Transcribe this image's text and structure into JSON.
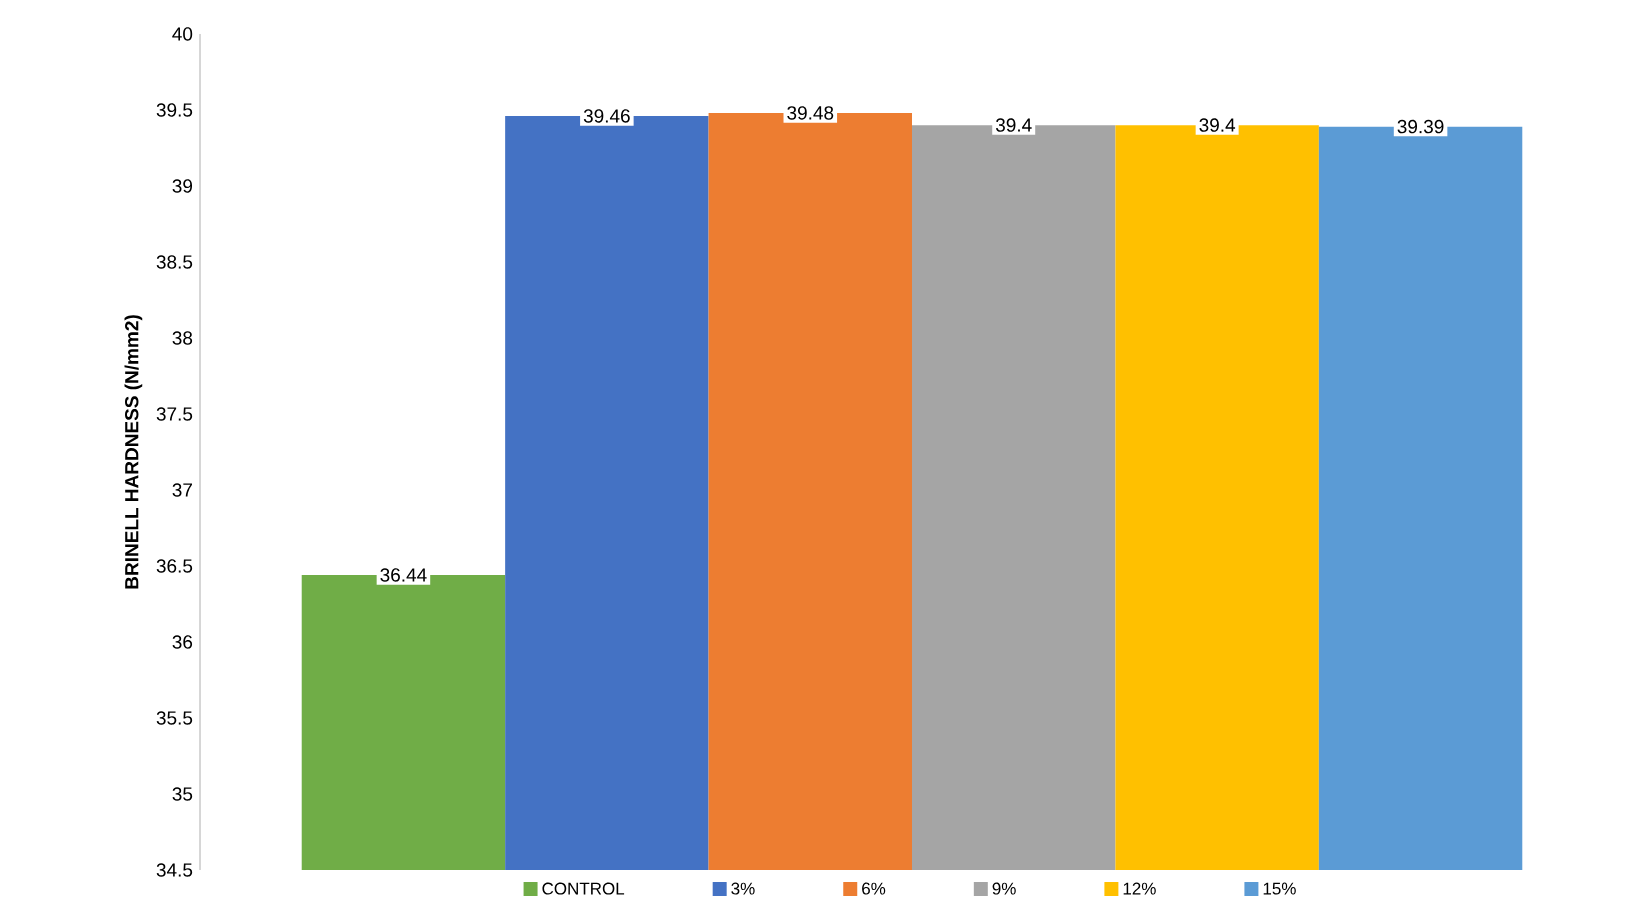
{
  "chart_data": {
    "type": "bar",
    "ylabel": "BRINELL HARDNESS (N/mm2)",
    "categories": [
      null
    ],
    "series": [
      {
        "name": "CONTROL",
        "color": "#70ad47",
        "values": [
          36.44
        ]
      },
      {
        "name": "3%",
        "color": "#4472c4",
        "values": [
          39.46
        ]
      },
      {
        "name": "6%",
        "color": "#ed7d31",
        "values": [
          39.48
        ]
      },
      {
        "name": "9%",
        "color": "#a5a5a5",
        "values": [
          39.4
        ]
      },
      {
        "name": "12%",
        "color": "#ffc000",
        "values": [
          39.4
        ]
      },
      {
        "name": "15%",
        "color": "#5b9bd5",
        "values": [
          39.39
        ]
      }
    ],
    "ylim": [
      34.5,
      40
    ],
    "yticks": [
      34.5,
      35,
      35.5,
      36,
      36.5,
      37,
      37.5,
      38,
      38.5,
      39,
      39.5,
      40
    ],
    "data_labels": true,
    "legend": "bottom",
    "grid": false
  }
}
